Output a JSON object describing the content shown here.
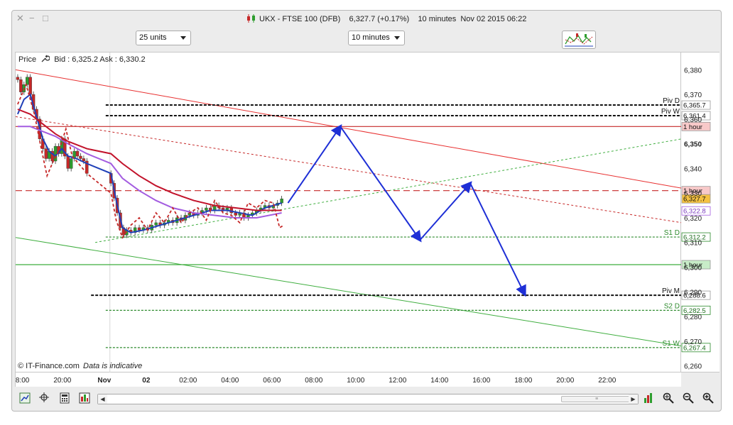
{
  "window": {
    "title": "UKX - FTSE 100 (DFB)    6,327.7 (+0.17%)    10 minutes  Nov 02 2015 06:22",
    "close_glyph": "✕",
    "minimize_glyph": "−",
    "maximize_glyph": "□",
    "title_icon": "candlestick-chart-icon"
  },
  "toolbar": {
    "units_select": "25 units",
    "interval_select": "10 minutes",
    "drawing_tools_icon": "chart-drawing-tools-icon"
  },
  "info_bar": {
    "price_label": "Price",
    "price_settings_icon": "wrench-icon",
    "bid_ask": "Bid : 6,325.2 Ask : 6,330.2"
  },
  "footer": {
    "copyright": "© IT-Finance.com",
    "disclaimer": "Data is indicative"
  },
  "colors": {
    "up_candle": "#2e9d2e",
    "down_candle": "#c62828",
    "blue_ma": "#1f3fb8",
    "red_ma": "#c2132b",
    "purple_ma": "#a35ce0",
    "dashed_ma": "#c62828",
    "forecast_arrow": "#1e2fd6",
    "resistance_line": "#e83030",
    "support_line": "#3fae3f",
    "pivot_dotted": "#111111",
    "support_dotted": "#2c8a2c"
  },
  "chart_data": {
    "type": "candlestick",
    "instrument": "UKX - FTSE 100 (DFB)",
    "interval": "10 minutes",
    "ylim": [
      6257,
      6387
    ],
    "yticks": [
      "6,380",
      "6,370",
      "6,360",
      "6,350",
      "6,340",
      "6,330",
      "6,320",
      "6,310",
      "6,300",
      "6,290",
      "6,280",
      "6,270",
      "6,260"
    ],
    "xticks": [
      {
        "label": "18:00",
        "hour": 18
      },
      {
        "label": "20:00",
        "hour": 20
      },
      {
        "label": "Nov",
        "hour": 22
      },
      {
        "label": "02",
        "hour": 24
      },
      {
        "label": "02:00",
        "hour": 26
      },
      {
        "label": "04:00",
        "hour": 28
      },
      {
        "label": "06:00",
        "hour": 30
      },
      {
        "label": "08:00",
        "hour": 32
      },
      {
        "label": "10:00",
        "hour": 34
      },
      {
        "label": "12:00",
        "hour": 36
      },
      {
        "label": "14:00",
        "hour": 38
      },
      {
        "label": "16:00",
        "hour": 40
      },
      {
        "label": "18:00",
        "hour": 42
      },
      {
        "label": "20:00",
        "hour": 44
      },
      {
        "label": "22:00",
        "hour": 46
      }
    ],
    "xlim_hours": [
      17.7,
      49.5
    ],
    "session_gap_hour": 21.2,
    "session_gap_end_hour": 22.2,
    "closes": [
      {
        "h": 17.8,
        "c": 6376
      },
      {
        "h": 17.95,
        "c": 6371
      },
      {
        "h": 18.1,
        "c": 6374
      },
      {
        "h": 18.25,
        "c": 6377
      },
      {
        "h": 18.4,
        "c": 6370
      },
      {
        "h": 18.55,
        "c": 6364
      },
      {
        "h": 18.7,
        "c": 6360
      },
      {
        "h": 18.85,
        "c": 6352
      },
      {
        "h": 19.0,
        "c": 6348
      },
      {
        "h": 19.15,
        "c": 6344
      },
      {
        "h": 19.3,
        "c": 6347
      },
      {
        "h": 19.45,
        "c": 6343
      },
      {
        "h": 19.6,
        "c": 6349
      },
      {
        "h": 19.75,
        "c": 6346
      },
      {
        "h": 19.9,
        "c": 6352
      },
      {
        "h": 20.05,
        "c": 6345
      },
      {
        "h": 20.2,
        "c": 6340
      },
      {
        "h": 20.35,
        "c": 6344
      },
      {
        "h": 20.5,
        "c": 6347
      },
      {
        "h": 20.65,
        "c": 6345
      },
      {
        "h": 20.8,
        "c": 6344
      },
      {
        "h": 20.95,
        "c": 6343
      },
      {
        "h": 21.1,
        "c": 6338
      },
      {
        "h": 22.25,
        "c": 6334
      },
      {
        "h": 22.4,
        "c": 6328
      },
      {
        "h": 22.55,
        "c": 6322
      },
      {
        "h": 22.7,
        "c": 6316
      },
      {
        "h": 22.85,
        "c": 6313
      },
      {
        "h": 23.0,
        "c": 6315
      },
      {
        "h": 23.2,
        "c": 6314
      },
      {
        "h": 23.4,
        "c": 6316
      },
      {
        "h": 23.6,
        "c": 6315
      },
      {
        "h": 23.8,
        "c": 6316
      },
      {
        "h": 24.0,
        "c": 6315
      },
      {
        "h": 24.2,
        "c": 6317
      },
      {
        "h": 24.4,
        "c": 6318
      },
      {
        "h": 24.6,
        "c": 6317
      },
      {
        "h": 24.8,
        "c": 6318
      },
      {
        "h": 25.0,
        "c": 6319
      },
      {
        "h": 25.2,
        "c": 6318
      },
      {
        "h": 25.4,
        "c": 6320
      },
      {
        "h": 25.6,
        "c": 6319
      },
      {
        "h": 25.8,
        "c": 6321
      },
      {
        "h": 26.0,
        "c": 6322
      },
      {
        "h": 26.2,
        "c": 6321
      },
      {
        "h": 26.4,
        "c": 6322
      },
      {
        "h": 26.6,
        "c": 6323
      },
      {
        "h": 26.8,
        "c": 6324
      },
      {
        "h": 27.0,
        "c": 6323
      },
      {
        "h": 27.2,
        "c": 6325
      },
      {
        "h": 27.4,
        "c": 6324
      },
      {
        "h": 27.6,
        "c": 6323
      },
      {
        "h": 27.8,
        "c": 6324
      },
      {
        "h": 28.0,
        "c": 6322
      },
      {
        "h": 28.2,
        "c": 6321
      },
      {
        "h": 28.4,
        "c": 6322
      },
      {
        "h": 28.6,
        "c": 6320
      },
      {
        "h": 28.8,
        "c": 6321
      },
      {
        "h": 29.0,
        "c": 6322
      },
      {
        "h": 29.2,
        "c": 6323
      },
      {
        "h": 29.4,
        "c": 6324
      },
      {
        "h": 29.6,
        "c": 6325
      },
      {
        "h": 29.8,
        "c": 6324
      },
      {
        "h": 30.0,
        "c": 6325
      },
      {
        "h": 30.2,
        "c": 6326
      },
      {
        "h": 30.4,
        "c": 6327.7
      }
    ],
    "series": [
      {
        "name": "",
        "color_key": "blue_ma",
        "points": [
          [
            17.8,
            6362
          ],
          [
            18.1,
            6368
          ],
          [
            18.4,
            6370
          ],
          [
            18.7,
            6361
          ],
          [
            19.0,
            6352
          ],
          [
            19.3,
            6347
          ],
          [
            19.6,
            6345
          ],
          [
            19.9,
            6348
          ],
          [
            20.2,
            6345
          ],
          [
            20.6,
            6344
          ],
          [
            21.1,
            6342
          ],
          [
            22.25,
            6338
          ],
          [
            22.5,
            6327
          ],
          [
            22.8,
            6316
          ],
          [
            23.2,
            6314
          ],
          [
            23.8,
            6315
          ],
          [
            24.6,
            6317
          ],
          [
            25.4,
            6319
          ],
          [
            26.2,
            6321
          ],
          [
            27.0,
            6323
          ],
          [
            27.8,
            6323
          ],
          [
            28.4,
            6322
          ],
          [
            29.0,
            6321
          ],
          [
            29.6,
            6324
          ],
          [
            30.4,
            6326
          ]
        ]
      },
      {
        "name": "",
        "color_key": "red_ma",
        "points": [
          [
            17.8,
            6364
          ],
          [
            18.4,
            6362
          ],
          [
            19.0,
            6358
          ],
          [
            19.6,
            6354
          ],
          [
            20.2,
            6351
          ],
          [
            21.1,
            6348
          ],
          [
            22.25,
            6346
          ],
          [
            22.8,
            6342
          ],
          [
            23.6,
            6337
          ],
          [
            24.4,
            6333
          ],
          [
            25.2,
            6330
          ],
          [
            26.2,
            6327
          ],
          [
            27.2,
            6325
          ],
          [
            28.2,
            6324
          ],
          [
            29.2,
            6323
          ],
          [
            30.4,
            6323
          ]
        ]
      },
      {
        "name": "",
        "color_key": "purple_ma",
        "points": [
          [
            17.8,
            6357
          ],
          [
            18.4,
            6357
          ],
          [
            19.0,
            6355
          ],
          [
            19.6,
            6353
          ],
          [
            20.2,
            6350
          ],
          [
            21.1,
            6346
          ],
          [
            22.25,
            6342
          ],
          [
            22.8,
            6336
          ],
          [
            23.6,
            6331
          ],
          [
            24.4,
            6327
          ],
          [
            25.2,
            6324
          ],
          [
            26.2,
            6322
          ],
          [
            27.2,
            6321
          ],
          [
            28.2,
            6320
          ],
          [
            29.2,
            6320
          ],
          [
            30.4,
            6322
          ]
        ]
      },
      {
        "name": "",
        "color_key": "dashed_ma",
        "dashed": true,
        "points": [
          [
            17.8,
            6366
          ],
          [
            18.2,
            6374
          ],
          [
            18.6,
            6362
          ],
          [
            18.9,
            6349
          ],
          [
            19.2,
            6337
          ],
          [
            19.5,
            6343
          ],
          [
            19.8,
            6348
          ],
          [
            20.1,
            6356
          ],
          [
            20.4,
            6345
          ],
          [
            20.8,
            6341
          ],
          [
            21.1,
            6338
          ],
          [
            22.25,
            6330
          ],
          [
            22.5,
            6319
          ],
          [
            22.8,
            6312
          ],
          [
            23.2,
            6317
          ],
          [
            23.6,
            6320
          ],
          [
            24.0,
            6315
          ],
          [
            24.4,
            6322
          ],
          [
            24.8,
            6318
          ],
          [
            25.2,
            6324
          ],
          [
            25.6,
            6318
          ],
          [
            26.0,
            6322
          ],
          [
            26.4,
            6324
          ],
          [
            26.8,
            6319
          ],
          [
            27.2,
            6327
          ],
          [
            27.6,
            6322
          ],
          [
            28.0,
            6321
          ],
          [
            28.4,
            6318
          ],
          [
            28.8,
            6326
          ],
          [
            29.2,
            6324
          ],
          [
            29.6,
            6327
          ],
          [
            30.0,
            6326
          ],
          [
            30.3,
            6316
          ],
          [
            30.5,
            6317
          ]
        ]
      }
    ],
    "forecast_path": [
      [
        30.7,
        6326
      ],
      [
        33.2,
        6357
      ],
      [
        37.0,
        6311
      ],
      [
        39.4,
        6334
      ],
      [
        42.0,
        6289
      ]
    ],
    "trend_lines": [
      {
        "color_key": "resistance_line",
        "dashed": false,
        "from": [
          17.7,
          6380
        ],
        "to": [
          49.5,
          6332
        ]
      },
      {
        "color_key": "dashed_ma",
        "dashed": true,
        "from": [
          17.7,
          6361
        ],
        "to": [
          49.5,
          6318
        ]
      },
      {
        "color_key": "support_line",
        "dashed": false,
        "from": [
          17.7,
          6312
        ],
        "to": [
          49.5,
          6268
        ]
      },
      {
        "color_key": "support_line",
        "dashed": true,
        "from": [
          21.5,
          6310
        ],
        "to": [
          49.5,
          6352
        ]
      }
    ],
    "horizontal_levels": [
      {
        "label": "Piv D",
        "value": 6365.7,
        "value_label": "6,365.7",
        "style": "dotted",
        "color_key": "pivot_dotted",
        "from_hour": 22.0
      },
      {
        "label": "Piv W",
        "value": 6361.4,
        "value_label": "6,361.4",
        "style": "dotted",
        "color_key": "pivot_dotted",
        "from_hour": 22.0
      },
      {
        "label": "",
        "value": 6357,
        "value_label": "1 hour",
        "style": "solid",
        "color_key": "down_candle",
        "from_hour": 17.7,
        "tag_bg": "#f8c9c9"
      },
      {
        "label": "",
        "value": 6331,
        "value_label": "1 hour",
        "style": "dashed",
        "color_key": "down_candle",
        "from_hour": 17.7,
        "tag_bg": "#f8c9c9"
      },
      {
        "label": "",
        "value": 6327.7,
        "value_label": "6,327.7",
        "style": "none",
        "color_key": "pivot_dotted",
        "from_hour": 17.7,
        "tag_bg": "#f5c242"
      },
      {
        "label": "",
        "value": 6322.8,
        "value_label": "6,322.8",
        "style": "none",
        "color_key": "purple_ma",
        "from_hour": 17.7,
        "tag_bg": "#ffffff"
      },
      {
        "label": "S1 D",
        "value": 6312.2,
        "value_label": "6,312.2",
        "style": "dotted",
        "color_key": "support_dotted",
        "from_hour": 22.0
      },
      {
        "label": "",
        "value": 6301,
        "value_label": "1 hour",
        "style": "solid",
        "color_key": "support_line",
        "from_hour": 17.7,
        "tag_bg": "#c8ecc8"
      },
      {
        "label": "Piv M",
        "value": 6288.6,
        "value_label": "6,288.6",
        "style": "dotted",
        "color_key": "pivot_dotted",
        "from_hour": 21.3
      },
      {
        "label": "S2 D",
        "value": 6282.5,
        "value_label": "6,282.5",
        "style": "dotted",
        "color_key": "support_dotted",
        "from_hour": 22.0
      },
      {
        "label": "S1 W",
        "value": 6267.4,
        "value_label": "6,267.4",
        "style": "dotted",
        "color_key": "support_dotted",
        "from_hour": 22.0
      }
    ]
  },
  "bottombar": {
    "icons": [
      "chart-type-icon",
      "crosshair-icon",
      "calculator-icon",
      "indicators-icon",
      "settings-icon"
    ],
    "scroll_left": "◀",
    "scroll_right": "▶",
    "scroll_thumb": "≡",
    "zoom_icons": [
      "bars-icon",
      "zoom-fit-icon",
      "zoom-out-icon",
      "zoom-in-icon"
    ]
  }
}
